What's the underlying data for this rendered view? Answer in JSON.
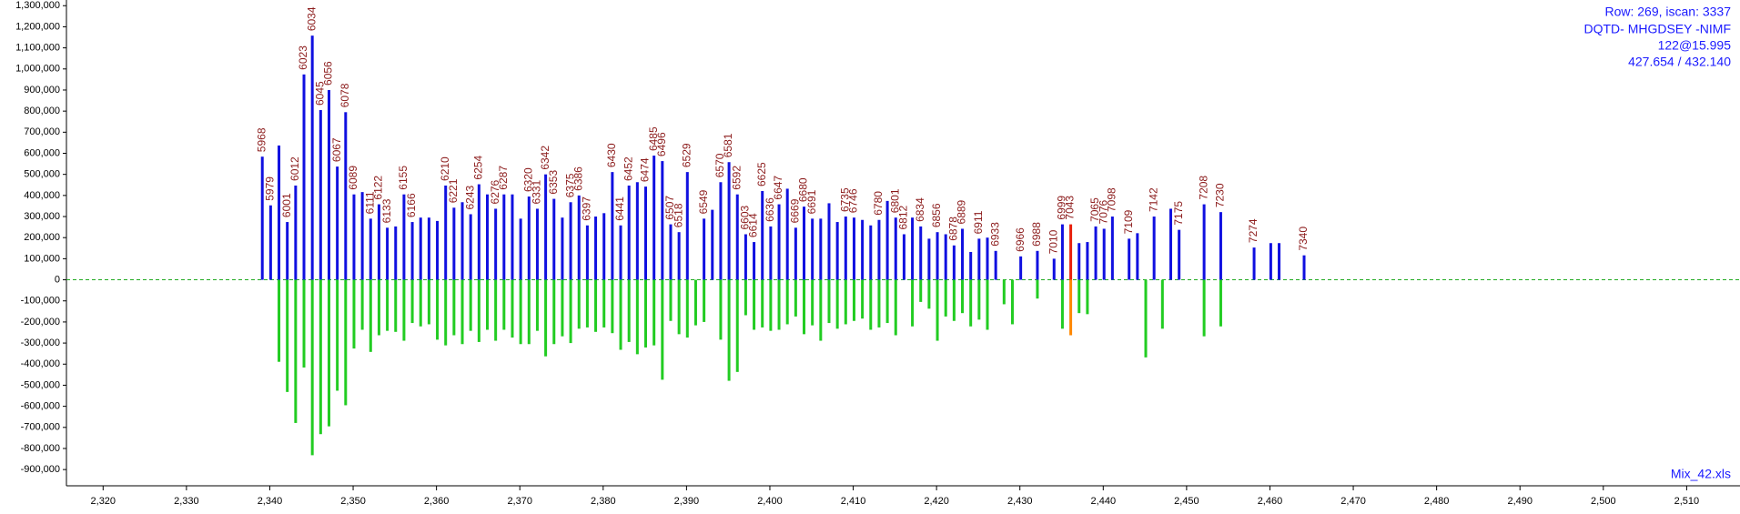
{
  "chart_data": {
    "type": "bar",
    "xlim": [
      2315.6,
      2516.4
    ],
    "ylim": [
      -977000,
      1327000
    ],
    "xticks": [
      {
        "value": 2320,
        "label": "2,320"
      },
      {
        "value": 2330,
        "label": "2,330"
      },
      {
        "value": 2340,
        "label": "2,340"
      },
      {
        "value": 2350,
        "label": "2,350"
      },
      {
        "value": 2360,
        "label": "2,360"
      },
      {
        "value": 2370,
        "label": "2,370"
      },
      {
        "value": 2380,
        "label": "2,380"
      },
      {
        "value": 2390,
        "label": "2,390"
      },
      {
        "value": 2400,
        "label": "2,400"
      },
      {
        "value": 2410,
        "label": "2,410"
      },
      {
        "value": 2420,
        "label": "2,420"
      },
      {
        "value": 2430,
        "label": "2,430"
      },
      {
        "value": 2440,
        "label": "2,440"
      },
      {
        "value": 2450,
        "label": "2,450"
      },
      {
        "value": 2460,
        "label": "2,460"
      },
      {
        "value": 2470,
        "label": "2,470"
      },
      {
        "value": 2480,
        "label": "2,480"
      },
      {
        "value": 2490,
        "label": "2,490"
      },
      {
        "value": 2500,
        "label": "2,500"
      },
      {
        "value": 2510,
        "label": "2,510"
      }
    ],
    "yticks": [
      {
        "value": 1300000,
        "label": "1,300,000"
      },
      {
        "value": 1200000,
        "label": "1,200,000"
      },
      {
        "value": 1100000,
        "label": "1,100,000"
      },
      {
        "value": 1000000,
        "label": "1,000,000"
      },
      {
        "value": 900000,
        "label": "900,000"
      },
      {
        "value": 800000,
        "label": "800,000"
      },
      {
        "value": 700000,
        "label": "700,000"
      },
      {
        "value": 600000,
        "label": "600,000"
      },
      {
        "value": 500000,
        "label": "500,000"
      },
      {
        "value": 400000,
        "label": "400,000"
      },
      {
        "value": 300000,
        "label": "300,000"
      },
      {
        "value": 200000,
        "label": "200,000"
      },
      {
        "value": 100000,
        "label": "100,000"
      },
      0,
      {
        "value": -100000,
        "label": "-100,000"
      },
      {
        "value": -200000,
        "label": "-200,000"
      },
      {
        "value": -300000,
        "label": "-300,000"
      },
      {
        "value": -400000,
        "label": "-400,000"
      },
      {
        "value": -500000,
        "label": "-500,000"
      },
      {
        "value": -600000,
        "label": "-600,000"
      },
      {
        "value": -700000,
        "label": "-700,000"
      },
      {
        "value": -800000,
        "label": "-800,000"
      },
      {
        "value": -900000,
        "label": "-900,000"
      }
    ],
    "annotations": [
      "Row: 269, iscan: 3337",
      "DQTD- MHGDSEY -NIMF",
      "122@15.995",
      "427.654 / 432.140"
    ],
    "footnote": "Mix_42.xls",
    "series": [
      {
        "color": "#1010e0",
        "x": [
          2339.1,
          2340.1,
          2341.1,
          2342.1,
          2343.1,
          2344.1,
          2345.1,
          2346.1,
          2347.1,
          2348.1,
          2349.1,
          2350.1,
          2351.1,
          2352.1,
          2353.1,
          2354.1,
          2355.1,
          2356.1,
          2357.1,
          2358.1,
          2359.1,
          2360.1,
          2361.1,
          2362.1,
          2363.1,
          2364.1,
          2365.1,
          2366.1,
          2367.1,
          2368.1,
          2369.1,
          2370.1,
          2371.1,
          2372.1,
          2373.1,
          2374.1,
          2375.1,
          2376.1,
          2377.1,
          2378.1,
          2379.1,
          2380.1,
          2381.1,
          2382.1,
          2383.1,
          2384.1,
          2385.1,
          2386.1,
          2387.1,
          2388.1,
          2389.1,
          2390.1,
          2392.1,
          2393.1,
          2394.1,
          2395.1,
          2396.1,
          2397.1,
          2398.1,
          2399.1,
          2400.1,
          2401.1,
          2402.1,
          2403.1,
          2404.1,
          2405.1,
          2406.1,
          2407.1,
          2408.1,
          2409.1,
          2410.1,
          2411.1,
          2412.1,
          2413.1,
          2414.1,
          2415.1,
          2416.1,
          2417.1,
          2418.1,
          2419.1,
          2420.1,
          2421.1,
          2422.1,
          2423.1,
          2424.1,
          2425.1,
          2426.1,
          2427.1,
          2430.1,
          2432.1,
          2434.1,
          2435.1,
          2437.1,
          2438.1,
          2439.1,
          2440.1,
          2441.1,
          2443.1,
          2444.1,
          2446.1,
          2448.1,
          2449.1,
          2452.1,
          2454.1,
          2458.1,
          2460.1,
          2461.1,
          2464.1
        ],
        "values": [
          584000,
          353000,
          637000,
          274000,
          447000,
          974000,
          1158000,
          805000,
          900000,
          537000,
          795000,
          405000,
          416000,
          290000,
          358000,
          247000,
          253000,
          405000,
          274000,
          295000,
          295000,
          279000,
          447000,
          342000,
          368000,
          311000,
          453000,
          405000,
          337000,
          405000,
          405000,
          290000,
          395000,
          337000,
          500000,
          384000,
          295000,
          368000,
          400000,
          258000,
          300000,
          316000,
          511000,
          258000,
          447000,
          463000,
          442000,
          589000,
          563000,
          263000,
          226000,
          511000,
          290000,
          332000,
          463000,
          558000,
          405000,
          216000,
          179000,
          421000,
          253000,
          358000,
          432000,
          247000,
          347000,
          290000,
          290000,
          363000,
          274000,
          300000,
          295000,
          284000,
          258000,
          284000,
          374000,
          295000,
          216000,
          295000,
          253000,
          195000,
          226000,
          216000,
          163000,
          242000,
          132000,
          195000,
          200000,
          137000,
          111000,
          137000,
          100000,
          263000,
          174000,
          179000,
          253000,
          242000,
          300000,
          195000,
          221000,
          300000,
          337000,
          237000,
          358000,
          321000,
          153000,
          174000,
          174000,
          116000
        ],
        "labels": [
          "5968",
          "5979",
          null,
          "6001",
          "6012",
          "6023",
          "6034",
          "6045",
          "6056",
          "6067",
          "6078",
          "6089",
          null,
          "6111",
          "6122",
          "6133",
          null,
          "6155",
          "6166",
          null,
          null,
          null,
          "6210",
          "6221",
          null,
          "6243",
          "6254",
          null,
          "6276",
          "6287",
          null,
          null,
          "6320",
          "6331",
          "6342",
          "6353",
          null,
          "6375",
          "6386",
          "6397",
          null,
          null,
          "6430",
          "6441",
          "6452",
          null,
          "6474",
          "6485",
          "6496",
          "6507",
          "6518",
          "6529",
          "6549",
          null,
          "6570",
          "6581",
          "6592",
          "6603",
          "6614",
          "6625",
          "6636",
          "6647",
          null,
          "6669",
          "6680",
          "6691",
          null,
          null,
          null,
          "6735",
          "6746",
          null,
          null,
          "6780",
          null,
          "6801",
          "6812",
          null,
          "6834",
          null,
          "6856",
          null,
          "6878",
          "6889",
          null,
          "6911",
          null,
          "6933",
          "6966",
          "6988",
          "7010",
          "6999",
          null,
          null,
          "7065",
          "7076",
          "7098",
          "7109",
          null,
          "7142",
          null,
          "7175",
          "7208",
          "7230",
          "7274",
          null,
          null,
          "7340"
        ]
      },
      {
        "color": "#e8200c",
        "x": [
          2436.1
        ],
        "values": [
          263000
        ],
        "labels": [
          "7043"
        ]
      },
      {
        "color": "#22cc22",
        "x": [
          2341.1,
          2342.1,
          2343.1,
          2344.1,
          2345.1,
          2346.1,
          2347.1,
          2348.1,
          2349.1,
          2350.1,
          2351.1,
          2352.1,
          2353.1,
          2354.1,
          2355.1,
          2356.1,
          2357.1,
          2358.1,
          2359.1,
          2360.1,
          2361.1,
          2362.1,
          2363.1,
          2364.1,
          2365.1,
          2366.1,
          2367.1,
          2368.1,
          2369.1,
          2370.1,
          2371.1,
          2372.1,
          2373.1,
          2374.1,
          2375.1,
          2376.1,
          2377.1,
          2378.1,
          2379.1,
          2380.1,
          2381.1,
          2382.1,
          2383.1,
          2384.1,
          2385.1,
          2386.1,
          2387.1,
          2388.1,
          2389.1,
          2390.1,
          2391.1,
          2392.1,
          2394.1,
          2395.1,
          2396.1,
          2397.1,
          2398.1,
          2399.1,
          2400.1,
          2401.1,
          2402.1,
          2403.1,
          2404.1,
          2405.1,
          2406.1,
          2407.1,
          2408.1,
          2409.1,
          2410.1,
          2411.1,
          2412.1,
          2413.1,
          2414.1,
          2415.1,
          2417.1,
          2418.1,
          2419.1,
          2420.1,
          2421.1,
          2422.1,
          2423.1,
          2424.1,
          2425.1,
          2426.1,
          2428.1,
          2429.1,
          2432.1,
          2435.1,
          2437.1,
          2438.1,
          2445.1,
          2447.1,
          2452.1,
          2454.1
        ],
        "values": [
          -389000,
          -532000,
          -679000,
          -416000,
          -832000,
          -732000,
          -695000,
          -526000,
          -595000,
          -326000,
          -237000,
          -342000,
          -263000,
          -242000,
          -247000,
          -289000,
          -205000,
          -221000,
          -211000,
          -284000,
          -311000,
          -263000,
          -305000,
          -242000,
          -295000,
          -237000,
          -289000,
          -237000,
          -274000,
          -305000,
          -305000,
          -242000,
          -363000,
          -305000,
          -268000,
          -300000,
          -232000,
          -226000,
          -247000,
          -226000,
          -253000,
          -332000,
          -295000,
          -353000,
          -321000,
          -311000,
          -474000,
          -195000,
          -258000,
          -274000,
          -216000,
          -200000,
          -284000,
          -479000,
          -437000,
          -168000,
          -237000,
          -226000,
          -242000,
          -237000,
          -211000,
          -174000,
          -258000,
          -216000,
          -289000,
          -205000,
          -232000,
          -211000,
          -195000,
          -184000,
          -237000,
          -226000,
          -205000,
          -263000,
          -221000,
          -105000,
          -137000,
          -289000,
          -174000,
          -195000,
          -158000,
          -221000,
          -189000,
          -237000,
          -116000,
          -211000,
          -89000,
          -232000,
          -158000,
          -163000,
          -368000,
          -232000,
          -268000,
          -221000
        ]
      },
      {
        "color": "#ff8800",
        "x": [
          2436.1
        ],
        "values": [
          -263000
        ]
      }
    ]
  }
}
